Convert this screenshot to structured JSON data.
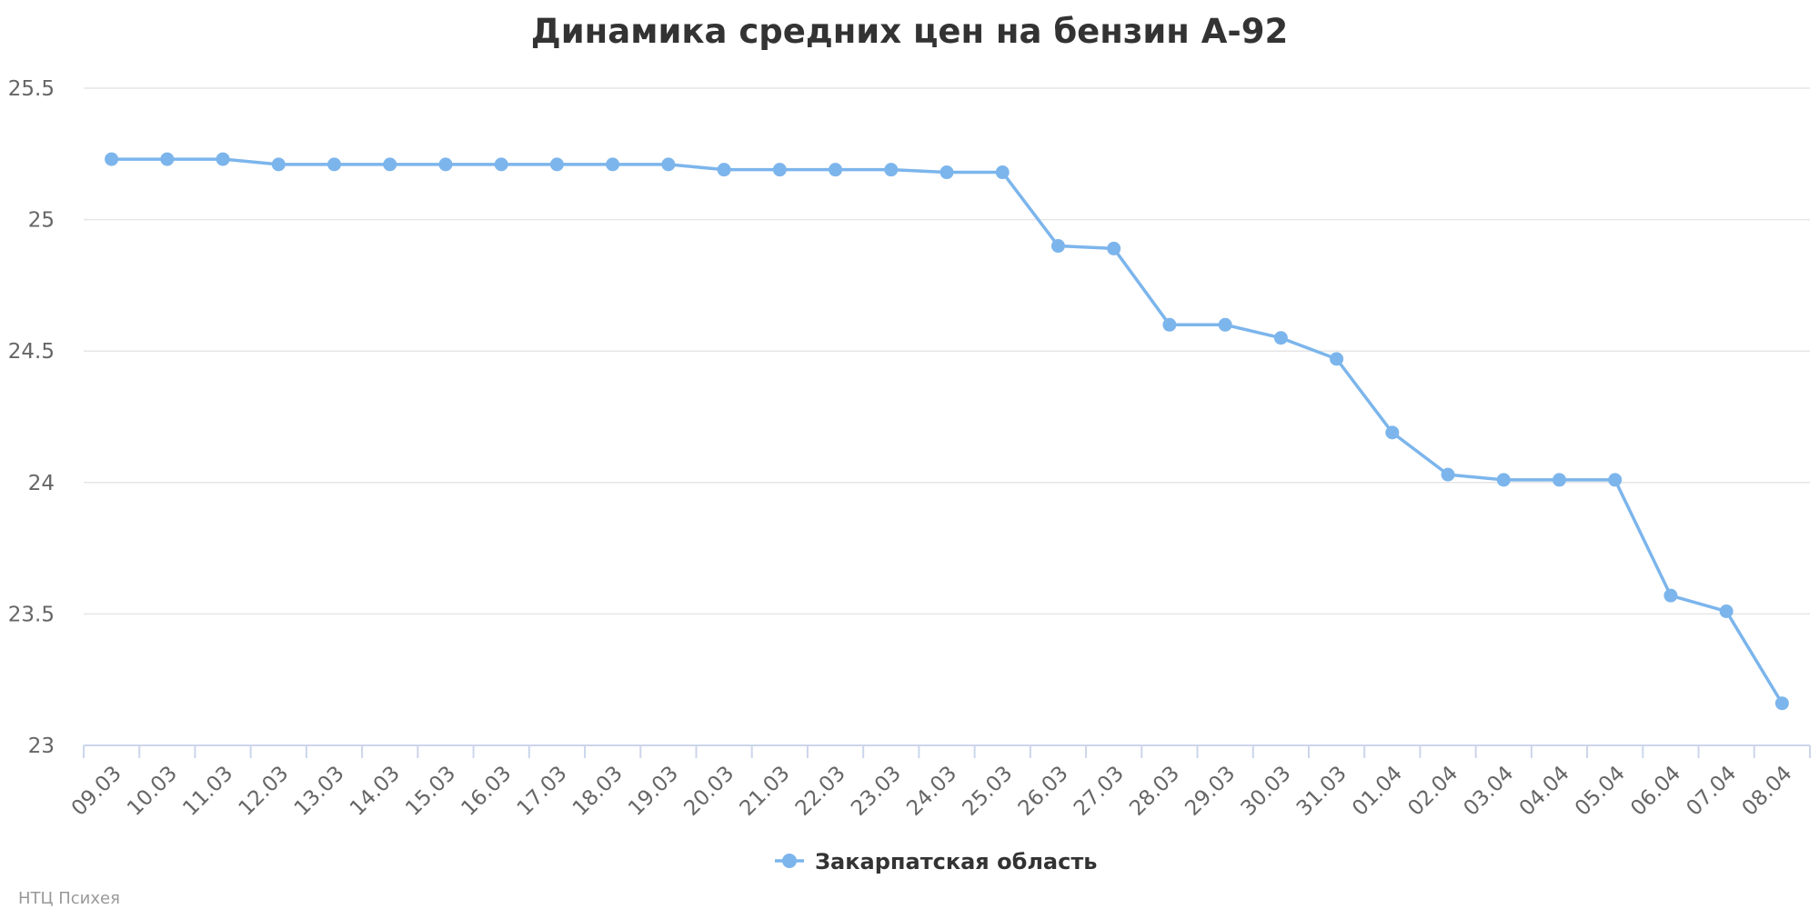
{
  "colors": {
    "series": "#7cb5ec",
    "grid": "#e6e6e6",
    "axis": "#ccd6eb",
    "title": "#333333",
    "tick": "#666666",
    "credits": "#999999"
  },
  "credits": "НТЦ Психея",
  "chart_data": {
    "type": "line",
    "title": "Динамика средних цен на бензин А-92",
    "xlabel": "",
    "ylabel": "",
    "ylim": [
      23,
      25.5
    ],
    "yticks": [
      "23",
      "23.5",
      "24",
      "24.5",
      "25",
      "25.5"
    ],
    "grid": true,
    "legend_position": "bottom-center",
    "categories": [
      "09.03",
      "10.03",
      "11.03",
      "12.03",
      "13.03",
      "14.03",
      "15.03",
      "16.03",
      "17.03",
      "18.03",
      "19.03",
      "20.03",
      "21.03",
      "22.03",
      "23.03",
      "24.03",
      "25.03",
      "26.03",
      "27.03",
      "28.03",
      "29.03",
      "30.03",
      "31.03",
      "01.04",
      "02.04",
      "03.04",
      "04.04",
      "05.04",
      "06.04",
      "07.04",
      "08.04"
    ],
    "series": [
      {
        "name": "Закарпатская область",
        "values": [
          25.23,
          25.23,
          25.23,
          25.21,
          25.21,
          25.21,
          25.21,
          25.21,
          25.21,
          25.21,
          25.21,
          25.19,
          25.19,
          25.19,
          25.19,
          25.18,
          25.18,
          24.9,
          24.89,
          24.6,
          24.6,
          24.55,
          24.47,
          24.19,
          24.03,
          24.01,
          24.01,
          24.01,
          23.57,
          23.51,
          23.16
        ]
      }
    ]
  }
}
